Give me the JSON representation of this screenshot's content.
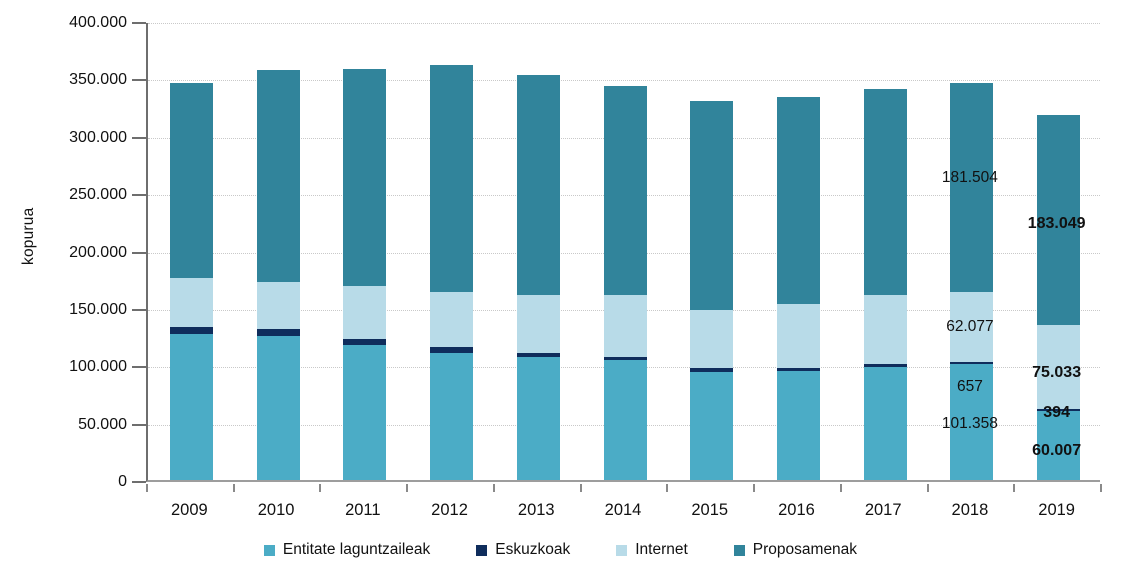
{
  "chart_data": {
    "type": "bar",
    "stacked": true,
    "title": "",
    "xlabel": "",
    "ylabel": "kopurua",
    "ylim": [
      0,
      400000
    ],
    "ytick_step": 50000,
    "ytick_labels": [
      "0",
      "50.000",
      "100.000",
      "150.000",
      "200.000",
      "250.000",
      "300.000",
      "350.000",
      "400.000"
    ],
    "grid": "horizontal",
    "legend_position": "bottom",
    "categories": [
      "2009",
      "2010",
      "2011",
      "2012",
      "2013",
      "2014",
      "2015",
      "2016",
      "2017",
      "2018",
      "2019"
    ],
    "series": [
      {
        "name": "Entitate laguntzaileak",
        "color": "#4BACC6",
        "values": [
          127000,
          125500,
          117500,
          111000,
          107000,
          104500,
          94000,
          95000,
          98500,
          101358,
          60007
        ]
      },
      {
        "name": "Eskuzkoak",
        "color": "#0F2D5C",
        "values": [
          6000,
          6000,
          5500,
          5000,
          4000,
          2500,
          3500,
          3000,
          2500,
          657,
          394
        ]
      },
      {
        "name": "Internet",
        "color": "#B8DBE8",
        "values": [
          43000,
          41000,
          46000,
          47500,
          50000,
          54000,
          51000,
          55500,
          60000,
          62077,
          75033
        ]
      },
      {
        "name": "Proposamenak",
        "color": "#31849B",
        "values": [
          170000,
          185000,
          189000,
          198500,
          192000,
          182500,
          182000,
          180500,
          179500,
          181504,
          183049
        ]
      }
    ],
    "data_labels": [
      {
        "category": "2018",
        "series": "Proposamenak",
        "text": "181.504",
        "bold": false
      },
      {
        "category": "2018",
        "series": "Internet",
        "text": "62.077",
        "bold": false
      },
      {
        "category": "2018",
        "series": "Eskuzkoak",
        "text": "657",
        "bold": false
      },
      {
        "category": "2018",
        "series": "Entitate laguntzaileak",
        "text": "101.358",
        "bold": false
      },
      {
        "category": "2019",
        "series": "Proposamenak",
        "text": "183.049",
        "bold": true
      },
      {
        "category": "2019",
        "series": "Internet",
        "text": "75.033",
        "bold": true
      },
      {
        "category": "2019",
        "series": "Eskuzkoak",
        "text": "394",
        "bold": true
      },
      {
        "category": "2019",
        "series": "Entitate laguntzaileak",
        "text": "60.007",
        "bold": true
      }
    ],
    "colors": {
      "axis_line": "#6E6E6E",
      "baseline": "#9D9D9D",
      "gridline": "#C9C9C9",
      "text": "#111111",
      "background": "#FFFFFF"
    }
  }
}
